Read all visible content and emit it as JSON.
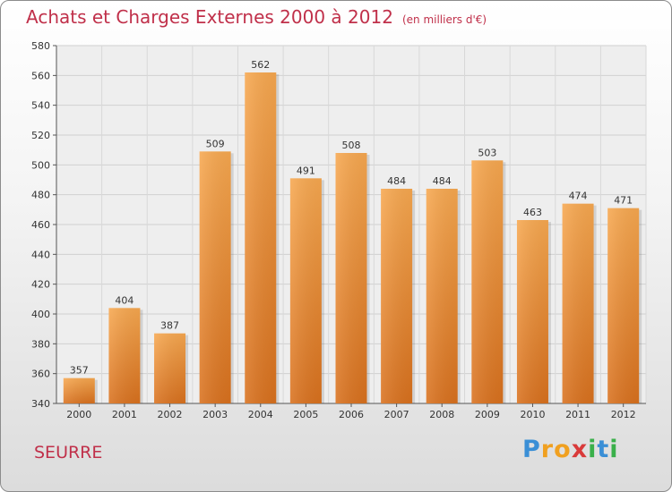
{
  "header": {
    "title": "Achats et Charges Externes 2000 à 2012",
    "subtitle": "(en milliers d'€)"
  },
  "footer": {
    "commune": "SEURRE",
    "brand": "Proxiti",
    "brand_letters": [
      {
        "ch": "P",
        "color": "#3a8fd6"
      },
      {
        "ch": "r",
        "color": "#f0a020"
      },
      {
        "ch": "o",
        "color": "#f0a020"
      },
      {
        "ch": "x",
        "color": "#d93a3a"
      },
      {
        "ch": "i",
        "color": "#3ab04a"
      },
      {
        "ch": "t",
        "color": "#3a8fd6"
      },
      {
        "ch": "i",
        "color": "#3ab04a"
      }
    ]
  },
  "chart_data": {
    "type": "bar",
    "title": "Achats et Charges Externes 2000 à 2012",
    "subtitle": "(en milliers d'€)",
    "categories": [
      "2000",
      "2001",
      "2002",
      "2003",
      "2004",
      "2005",
      "2006",
      "2007",
      "2008",
      "2009",
      "2010",
      "2011",
      "2012"
    ],
    "values": [
      357,
      404,
      387,
      509,
      562,
      491,
      508,
      484,
      484,
      503,
      463,
      474,
      471
    ],
    "ylim": [
      340,
      580
    ],
    "yticks": [
      340,
      360,
      380,
      400,
      420,
      440,
      460,
      480,
      500,
      520,
      540,
      560,
      580
    ],
    "grid": true,
    "bar_color_top": "#f7a850",
    "bar_color_bottom": "#d9711e"
  }
}
